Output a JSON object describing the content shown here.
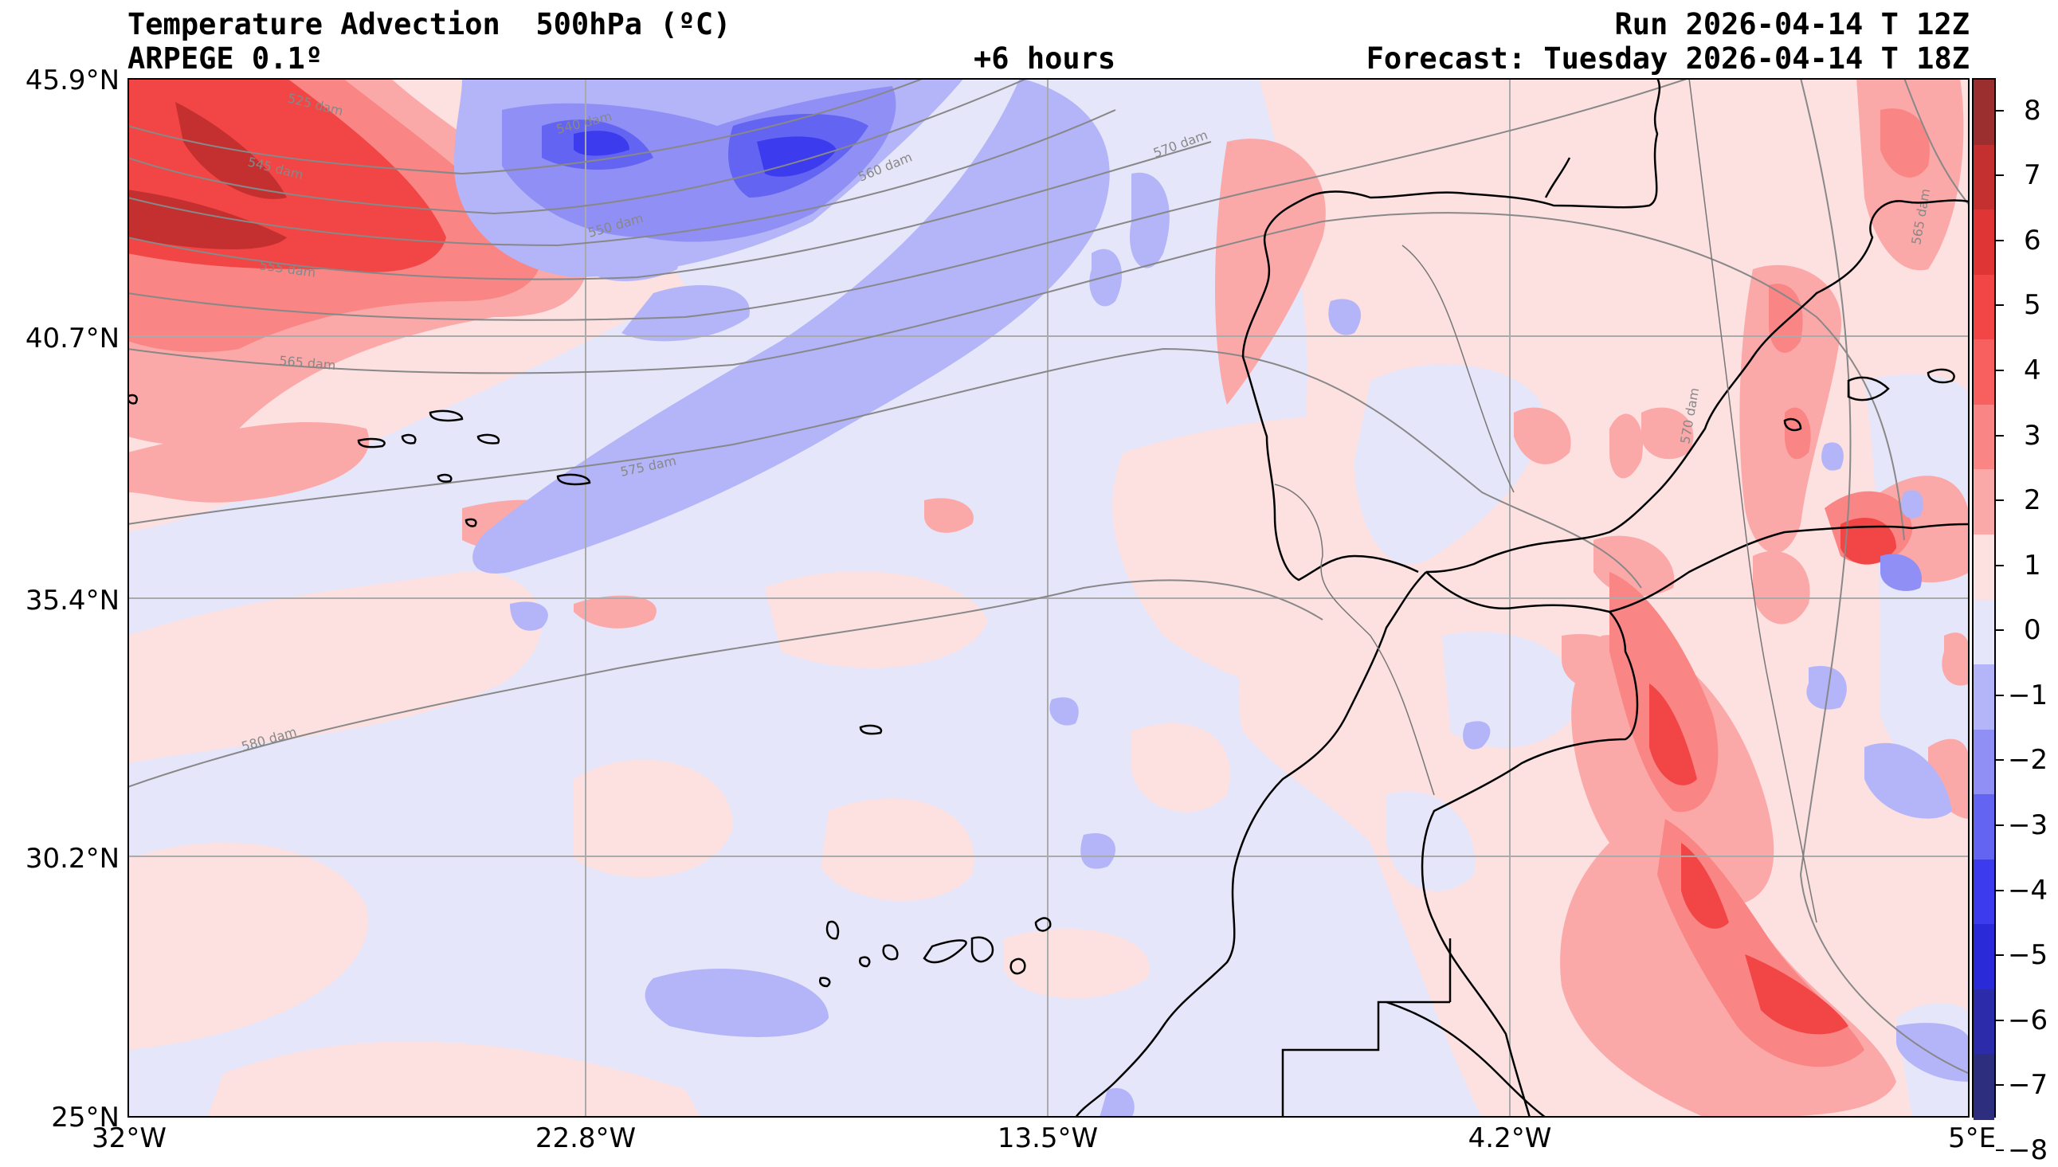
{
  "header": {
    "title": "Temperature Advection  500hPa (ºC)",
    "model": "ARPEGE 0.1º",
    "lead": "+6 hours",
    "run": "Run 2026-04-14 T 12Z",
    "forecast": "Forecast: Tuesday 2026-04-14 T 18Z"
  },
  "axes": {
    "lat_ticks": [
      "45.9°N",
      "40.7°N",
      "35.4°N",
      "30.2°N",
      "25°N"
    ],
    "lon_ticks": [
      "32°W",
      "22.8°W",
      "13.5°W",
      "4.2°W",
      "5°E"
    ],
    "lat_values": [
      45.9,
      40.7,
      35.4,
      30.2,
      25.0
    ],
    "lon_values": [
      -32,
      -22.8,
      -13.5,
      -4.2,
      5
    ]
  },
  "colorbar": {
    "labels": [
      "8",
      "7",
      "6",
      "5",
      "4",
      "3",
      "2",
      "1",
      "0",
      "−1",
      "−2",
      "−3",
      "−4",
      "−5",
      "−6",
      "−7",
      "−8"
    ],
    "levels": [
      8,
      7,
      6,
      5,
      4,
      3,
      2,
      1,
      0,
      -1,
      -2,
      -3,
      -4,
      -5,
      -6,
      -7,
      -8
    ],
    "colors": [
      "#9b2e2e",
      "#c43030",
      "#e03535",
      "#f24545",
      "#f86060",
      "#f98585",
      "#fba8a8",
      "#fde0e0",
      "#e6e6fa",
      "#b4b4f8",
      "#8f8ff5",
      "#6464f2",
      "#3c3cee",
      "#2a2ad8",
      "#2c2caa",
      "#2e2e7e"
    ],
    "neutral_positive": "#fde0e0",
    "neutral_negative": "#e6e6fa"
  },
  "contours": {
    "labels": [
      "525 dam",
      "540 dam",
      "545 dam",
      "550 dam",
      "555 dam",
      "560 dam",
      "565 dam",
      "565 dam",
      "570 dam",
      "570 dam",
      "575 dam",
      "580 dam"
    ],
    "line_color": "#888888"
  },
  "map": {
    "land_outline_color": "#000000",
    "grid_color": "#aaaaaa"
  }
}
